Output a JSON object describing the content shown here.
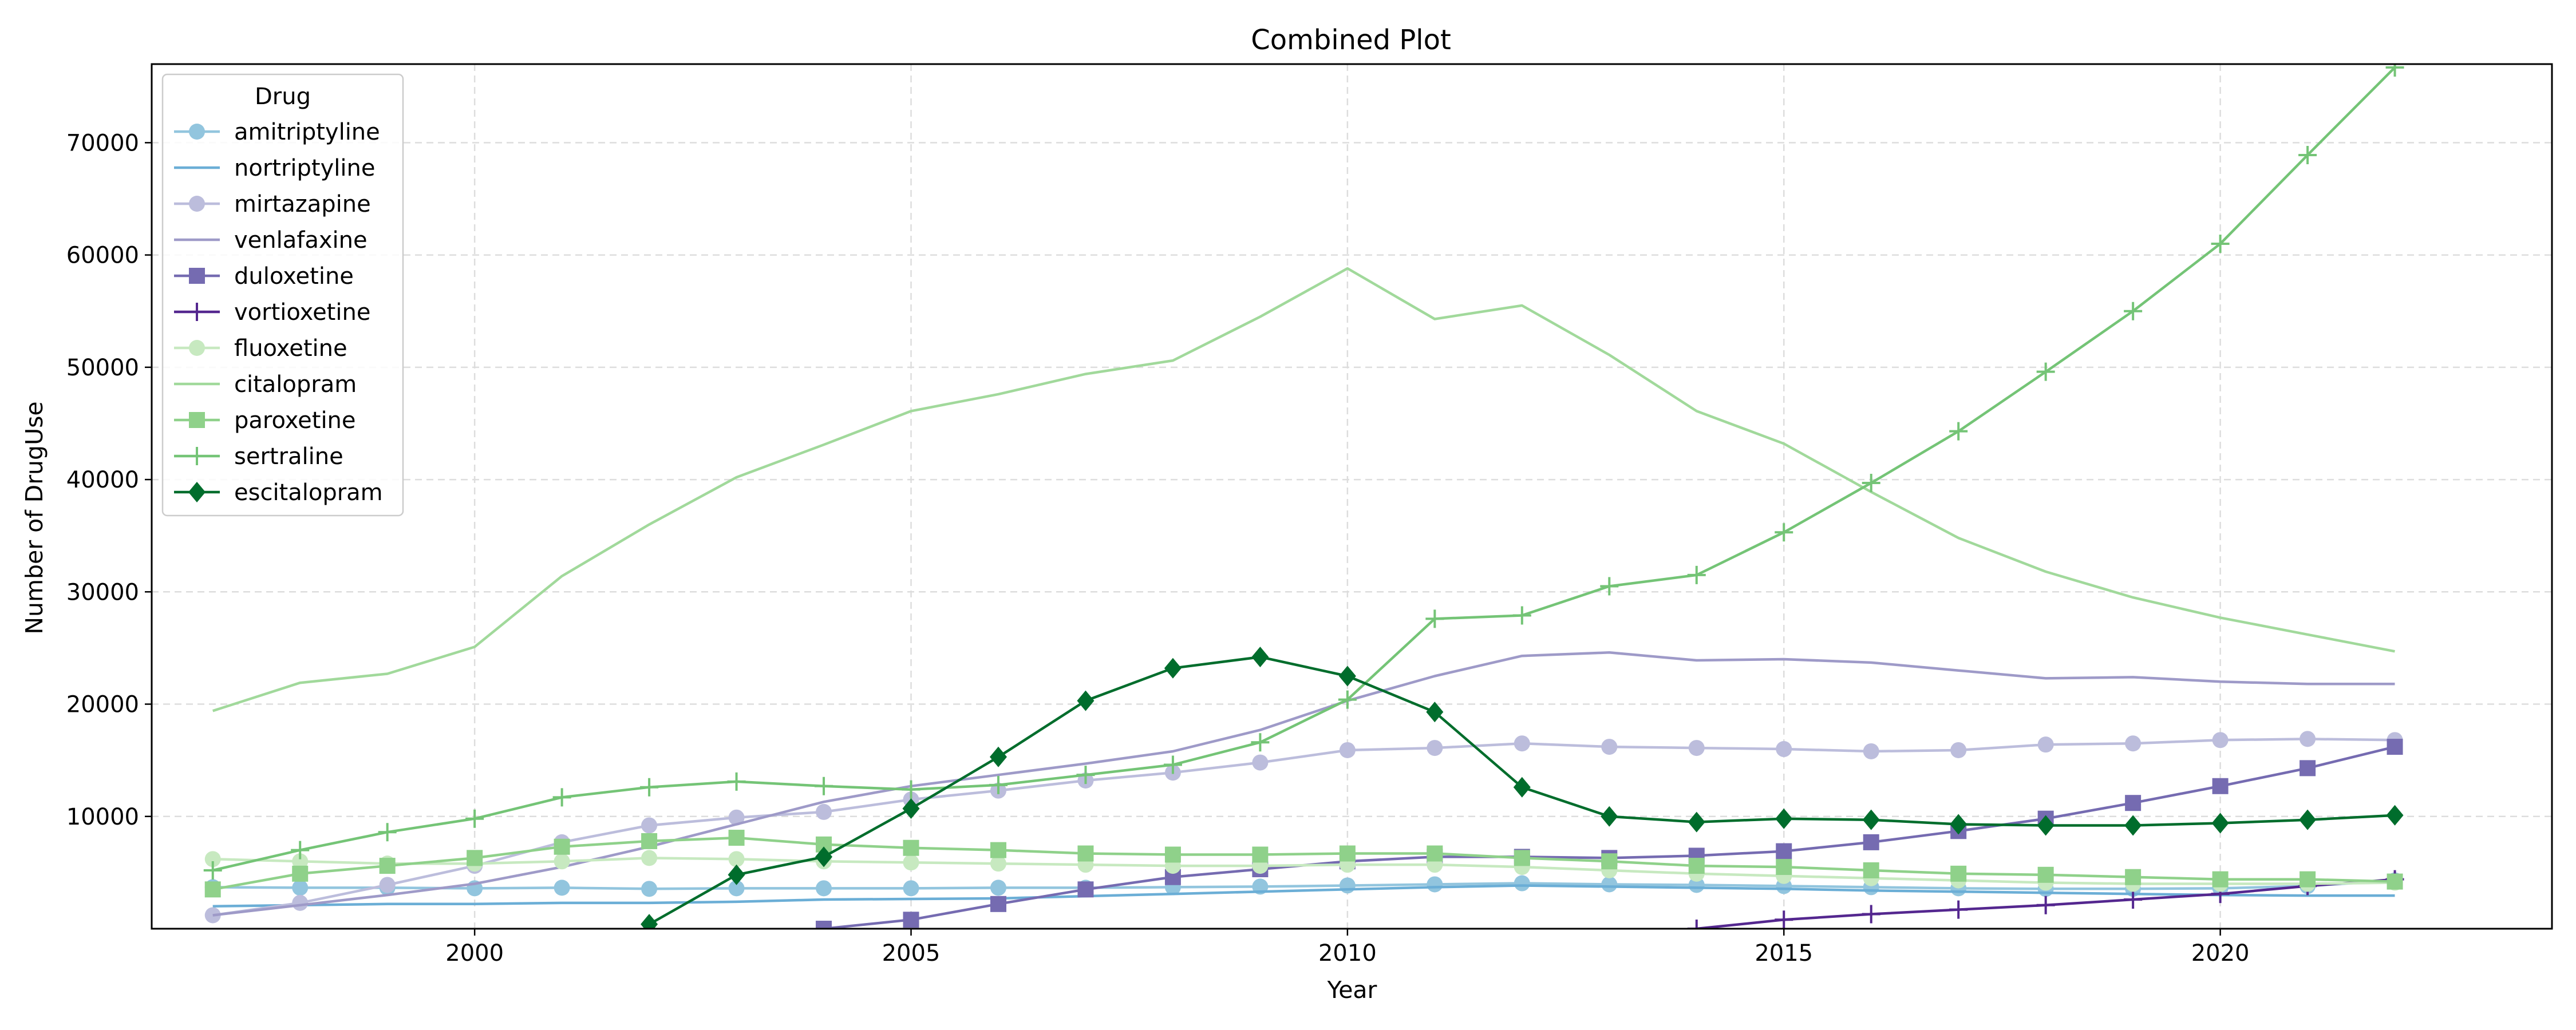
{
  "chart_data": {
    "type": "line",
    "title": "Combined Plot",
    "xlabel": "Year",
    "ylabel": "Number of DrugUse",
    "xlim": [
      1996.3,
      2023.8
    ],
    "ylim": [
      0,
      77000
    ],
    "xticks": [
      2000,
      2005,
      2010,
      2015,
      2020
    ],
    "yticks": [
      10000,
      20000,
      30000,
      40000,
      50000,
      60000,
      70000
    ],
    "grid": true,
    "legend": {
      "title": "Drug",
      "placement": "top-left"
    },
    "series": [
      {
        "name": "amitriptyline",
        "color": "#92c5de",
        "marker": "circle",
        "x": [
          1997,
          1998,
          1999,
          2000,
          2001,
          2002,
          2003,
          2004,
          2005,
          2006,
          2007,
          2008,
          2009,
          2010,
          2011,
          2012,
          2013,
          2014,
          2015,
          2016,
          2017,
          2018,
          2019,
          2020,
          2021,
          2022
        ],
        "y": [
          3700,
          3650,
          3650,
          3600,
          3650,
          3550,
          3600,
          3600,
          3600,
          3650,
          3650,
          3700,
          3750,
          3850,
          3950,
          4050,
          3950,
          3900,
          3800,
          3700,
          3600,
          3550,
          3550,
          3600,
          3800,
          4300
        ]
      },
      {
        "name": "nortriptyline",
        "color": "#6baed6",
        "marker": "none",
        "x": [
          1997,
          1998,
          1999,
          2000,
          2001,
          2002,
          2003,
          2004,
          2005,
          2006,
          2007,
          2008,
          2009,
          2010,
          2011,
          2012,
          2013,
          2014,
          2015,
          2016,
          2017,
          2018,
          2019,
          2020,
          2021,
          2022
        ],
        "y": [
          2000,
          2100,
          2200,
          2200,
          2300,
          2300,
          2400,
          2600,
          2650,
          2700,
          2900,
          3100,
          3300,
          3500,
          3700,
          3850,
          3750,
          3650,
          3550,
          3400,
          3300,
          3200,
          3100,
          3000,
          2950,
          2950
        ]
      },
      {
        "name": "mirtazapine",
        "color": "#bcbddc",
        "marker": "circle",
        "x": [
          1997,
          1998,
          1999,
          2000,
          2001,
          2002,
          2003,
          2004,
          2005,
          2006,
          2007,
          2008,
          2009,
          2010,
          2011,
          2012,
          2013,
          2014,
          2015,
          2016,
          2017,
          2018,
          2019,
          2020,
          2021,
          2022
        ],
        "y": [
          1200,
          2300,
          3900,
          5600,
          7700,
          9200,
          9900,
          10400,
          11500,
          12300,
          13200,
          13900,
          14800,
          15900,
          16100,
          16500,
          16200,
          16100,
          16000,
          15800,
          15900,
          16400,
          16500,
          16800,
          16900,
          16800
        ]
      },
      {
        "name": "venlafaxine",
        "color": "#9e9ac8",
        "marker": "none",
        "x": [
          1997,
          1998,
          1999,
          2000,
          2001,
          2002,
          2003,
          2004,
          2005,
          2006,
          2007,
          2008,
          2009,
          2010,
          2011,
          2012,
          2013,
          2014,
          2015,
          2016,
          2017,
          2018,
          2019,
          2020,
          2021,
          2022
        ],
        "y": [
          1200,
          2100,
          3000,
          4000,
          5500,
          7300,
          9300,
          11300,
          12700,
          13700,
          14700,
          15800,
          17700,
          20300,
          22500,
          24300,
          24600,
          23900,
          24000,
          23700,
          23000,
          22300,
          22400,
          22000,
          21800,
          21800
        ]
      },
      {
        "name": "duloxetine",
        "color": "#756bb1",
        "marker": "square",
        "x": [
          2004,
          2005,
          2006,
          2007,
          2008,
          2009,
          2010,
          2011,
          2012,
          2013,
          2014,
          2015,
          2016,
          2017,
          2018,
          2019,
          2020,
          2021,
          2022
        ],
        "y": [
          0,
          800,
          2200,
          3500,
          4600,
          5300,
          6000,
          6400,
          6400,
          6300,
          6500,
          6900,
          7700,
          8700,
          9800,
          11200,
          12700,
          14300,
          16200
        ]
      },
      {
        "name": "vortioxetine",
        "color": "#54278f",
        "marker": "plus",
        "x": [
          2014,
          2015,
          2016,
          2017,
          2018,
          2019,
          2020,
          2021,
          2022
        ],
        "y": [
          0,
          800,
          1300,
          1700,
          2100,
          2600,
          3100,
          3800,
          4400
        ]
      },
      {
        "name": "fluoxetine",
        "color": "#c7e9c0",
        "marker": "circle",
        "x": [
          1997,
          1998,
          1999,
          2000,
          2001,
          2002,
          2003,
          2004,
          2005,
          2006,
          2007,
          2008,
          2009,
          2010,
          2011,
          2012,
          2013,
          2014,
          2015,
          2016,
          2017,
          2018,
          2019,
          2020,
          2021,
          2022
        ],
        "y": [
          6200,
          6000,
          5800,
          5800,
          6000,
          6300,
          6200,
          6000,
          5900,
          5800,
          5700,
          5600,
          5600,
          5700,
          5700,
          5500,
          5200,
          4900,
          4700,
          4500,
          4300,
          4100,
          4000,
          4000,
          4000,
          4100
        ]
      },
      {
        "name": "citalopram",
        "color": "#a1d99b",
        "marker": "none",
        "x": [
          1997,
          1998,
          1999,
          2000,
          2001,
          2002,
          2003,
          2004,
          2005,
          2006,
          2007,
          2008,
          2009,
          2010,
          2011,
          2012,
          2013,
          2014,
          2015,
          2016,
          2017,
          2018,
          2019,
          2020,
          2021,
          2022
        ],
        "y": [
          19400,
          21900,
          22700,
          25100,
          31400,
          36000,
          40200,
          43100,
          46100,
          47600,
          49400,
          50600,
          54500,
          58800,
          54300,
          55500,
          51100,
          46100,
          43200,
          38900,
          34800,
          31800,
          29500,
          27700,
          26200,
          24700
        ]
      },
      {
        "name": "paroxetine",
        "color": "#8fd18a",
        "marker": "square",
        "x": [
          1997,
          1998,
          1999,
          2000,
          2001,
          2002,
          2003,
          2004,
          2005,
          2006,
          2007,
          2008,
          2009,
          2010,
          2011,
          2012,
          2013,
          2014,
          2015,
          2016,
          2017,
          2018,
          2019,
          2020,
          2021,
          2022
        ],
        "y": [
          3500,
          4900,
          5600,
          6300,
          7300,
          7800,
          8100,
          7500,
          7200,
          7000,
          6700,
          6600,
          6600,
          6700,
          6700,
          6300,
          6000,
          5600,
          5500,
          5200,
          4900,
          4800,
          4600,
          4400,
          4400,
          4200
        ]
      },
      {
        "name": "sertraline",
        "color": "#74c476",
        "marker": "plus",
        "x": [
          1997,
          1998,
          1999,
          2000,
          2001,
          2002,
          2003,
          2004,
          2005,
          2006,
          2007,
          2008,
          2009,
          2010,
          2011,
          2012,
          2013,
          2014,
          2015,
          2016,
          2017,
          2018,
          2019,
          2020,
          2021,
          2022
        ],
        "y": [
          5200,
          7000,
          8600,
          9800,
          11700,
          12600,
          13100,
          12700,
          12400,
          12800,
          13700,
          14600,
          16600,
          20400,
          27600,
          27900,
          30500,
          31500,
          35300,
          39700,
          44300,
          49600,
          55000,
          61000,
          68900,
          76700
        ]
      },
      {
        "name": "escitalopram",
        "color": "#006d2c",
        "marker": "diamond",
        "x": [
          2002,
          2003,
          2004,
          2005,
          2006,
          2007,
          2008,
          2009,
          2010,
          2011,
          2012,
          2013,
          2014,
          2015,
          2016,
          2017,
          2018,
          2019,
          2020,
          2021,
          2022
        ],
        "y": [
          400,
          4800,
          6400,
          10700,
          15300,
          20300,
          23200,
          24200,
          22500,
          19300,
          12600,
          10000,
          9500,
          9800,
          9700,
          9300,
          9200,
          9200,
          9400,
          9700,
          10100
        ]
      }
    ]
  }
}
